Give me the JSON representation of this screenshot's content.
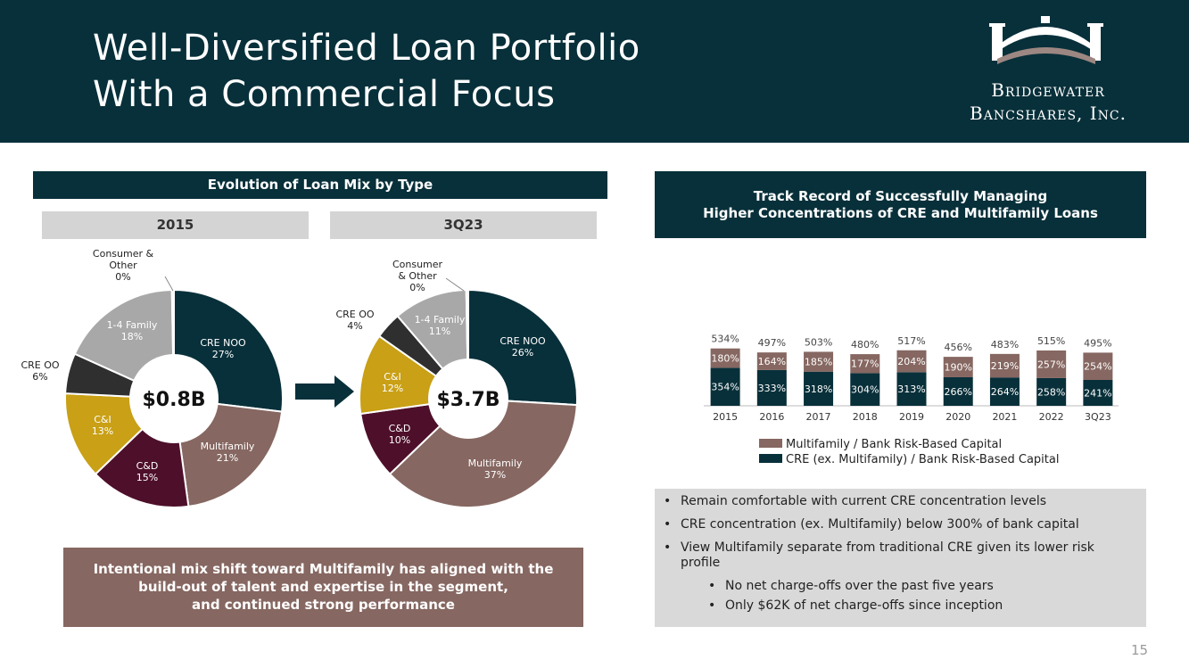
{
  "header": {
    "title_line1": "Well-Diversified Loan Portfolio",
    "title_line2": "With a Commercial Focus",
    "logo_line1": "Bridgewater",
    "logo_line2": "Bancshares, Inc."
  },
  "left_panel": {
    "banner": "Evolution of Loan Mix by Type",
    "callout_line1": "Intentional mix shift toward Multifamily has aligned with the",
    "callout_line2": "build-out of talent and expertise in the segment,",
    "callout_line3": "and continued strong performance"
  },
  "right_panel": {
    "banner_line1": "Track Record of Successfully Managing",
    "banner_line2": "Higher Concentrations of CRE and Multifamily Loans",
    "bullets": [
      "Remain comfortable with current CRE concentration levels",
      "CRE concentration (ex. Multifamily) below 300% of bank capital",
      "View Multifamily separate from traditional CRE given its lower risk profile"
    ],
    "sub_bullets": [
      "No net charge-offs over the past five years",
      "Only $62K of net charge-offs since inception"
    ]
  },
  "page_number": "15",
  "colors": {
    "navy": "#08303a",
    "mauve": "#866761",
    "gray_light": "#a8a8a8",
    "dark": "#2f2f2f",
    "gold": "#c9a016",
    "maroon": "#4e0f2a"
  },
  "chart_data": [
    {
      "type": "pie",
      "title": "2015",
      "center_label": "$0.8B",
      "slices": [
        {
          "label": "CRE NOO",
          "pct_label": "27%",
          "value": 27,
          "color": "#08303a"
        },
        {
          "label": "Multifamily",
          "pct_label": "21%",
          "value": 21,
          "color": "#866761"
        },
        {
          "label": "C&D",
          "pct_label": "15%",
          "value": 15,
          "color": "#4e0f2a"
        },
        {
          "label": "C&I",
          "pct_label": "13%",
          "value": 13,
          "color": "#c9a016"
        },
        {
          "label": "CRE OO",
          "pct_label": "6%",
          "value": 6,
          "color": "#2f2f2f"
        },
        {
          "label": "1-4 Family",
          "pct_label": "18%",
          "value": 18,
          "color": "#a8a8a8"
        },
        {
          "label": "Consumer & Other",
          "pct_label": "0%",
          "value": 0.3,
          "color": "#d0d0d0"
        }
      ]
    },
    {
      "type": "pie",
      "title": "3Q23",
      "center_label": "$3.7B",
      "slices": [
        {
          "label": "CRE NOO",
          "pct_label": "26%",
          "value": 26,
          "color": "#08303a"
        },
        {
          "label": "Multifamily",
          "pct_label": "37%",
          "value": 37,
          "color": "#866761"
        },
        {
          "label": "C&D",
          "pct_label": "10%",
          "value": 10,
          "color": "#4e0f2a"
        },
        {
          "label": "C&I",
          "pct_label": "12%",
          "value": 12,
          "color": "#c9a016"
        },
        {
          "label": "CRE OO",
          "pct_label": "4%",
          "value": 4,
          "color": "#2f2f2f"
        },
        {
          "label": "1-4 Family",
          "pct_label": "11%",
          "value": 11,
          "color": "#a8a8a8"
        },
        {
          "label": "Consumer & Other",
          "pct_label": "0%",
          "value": 0.3,
          "color": "#d0d0d0"
        }
      ]
    },
    {
      "type": "bar",
      "stacked": true,
      "categories": [
        "2015",
        "2016",
        "2017",
        "2018",
        "2019",
        "2020",
        "2021",
        "2022",
        "3Q23"
      ],
      "series": [
        {
          "name": "CRE (ex. Multifamily) / Bank Risk-Based Capital",
          "values": [
            354,
            333,
            318,
            304,
            313,
            266,
            264,
            258,
            241
          ],
          "color": "#08303a"
        },
        {
          "name": "Multifamily / Bank Risk-Based Capital",
          "values": [
            180,
            164,
            185,
            177,
            204,
            190,
            219,
            257,
            254
          ],
          "color": "#866761"
        }
      ],
      "totals": [
        534,
        497,
        503,
        480,
        517,
        456,
        483,
        515,
        495
      ],
      "ylim": [
        0,
        600
      ],
      "unit": "%",
      "legend_position": "bottom"
    }
  ]
}
